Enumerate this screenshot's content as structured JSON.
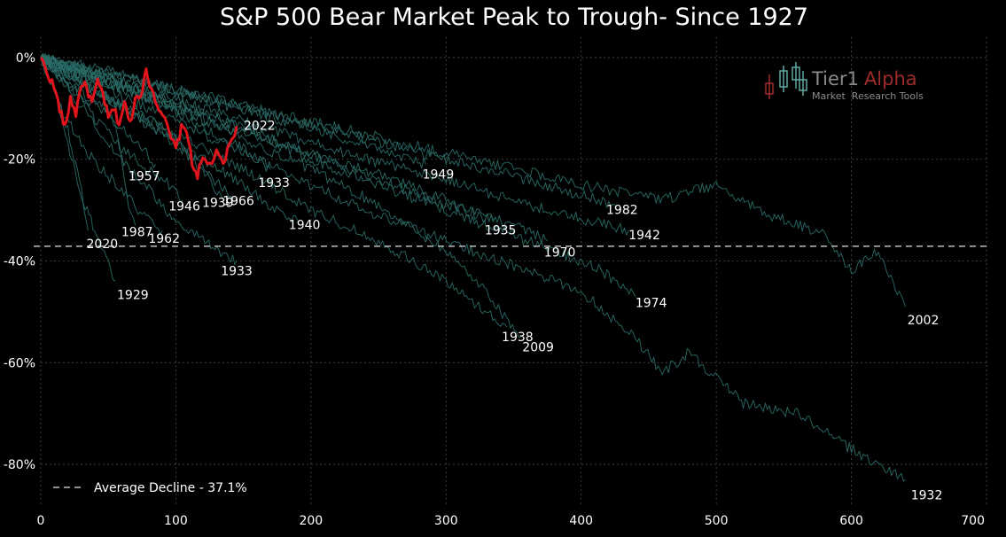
{
  "chart_data": {
    "type": "line",
    "title": "S&P 500 Bear Market Peak to Trough- Since 1927",
    "xlabel": "",
    "ylabel": "",
    "xlim": [
      0,
      700
    ],
    "ylim": [
      -88,
      4
    ],
    "x_ticks": [
      0,
      100,
      200,
      300,
      400,
      500,
      600,
      700
    ],
    "x_tick_labels": [
      "0",
      "100",
      "200",
      "300",
      "400",
      "500",
      "600",
      "700"
    ],
    "y_ticks": [
      0,
      -20,
      -40,
      -60,
      -80
    ],
    "y_tick_labels": [
      "0%",
      "-20%",
      "-40%",
      "-60%",
      "-80%"
    ],
    "grid": true,
    "legend": {
      "placement": "bottom-left",
      "entries": [
        {
          "label": "Average Decline - 37.1%",
          "style": "dashed",
          "color": "#bdbdbd"
        }
      ]
    },
    "average_decline": -37.1,
    "colors": {
      "background": "#000000",
      "history_line": "#2a6b67",
      "highlight_line": "#e0141c",
      "label": "#ffffff",
      "grid": "#4a4a4a"
    },
    "series": [
      {
        "name": "2022",
        "end_x": 145,
        "end_y": -13.5,
        "highlight": true,
        "points": [
          [
            0,
            0
          ],
          [
            5,
            -3
          ],
          [
            10,
            -6
          ],
          [
            14,
            -10
          ],
          [
            18,
            -14
          ],
          [
            22,
            -8
          ],
          [
            26,
            -11
          ],
          [
            30,
            -5
          ],
          [
            34,
            -6
          ],
          [
            38,
            -9
          ],
          [
            42,
            -5
          ],
          [
            46,
            -7
          ],
          [
            50,
            -12
          ],
          [
            54,
            -10
          ],
          [
            58,
            -13
          ],
          [
            62,
            -9
          ],
          [
            66,
            -13
          ],
          [
            70,
            -8
          ],
          [
            74,
            -7
          ],
          [
            78,
            -3
          ],
          [
            82,
            -6
          ],
          [
            86,
            -9
          ],
          [
            90,
            -11
          ],
          [
            95,
            -15
          ],
          [
            100,
            -18
          ],
          [
            104,
            -14
          ],
          [
            108,
            -14
          ],
          [
            112,
            -21
          ],
          [
            116,
            -23
          ],
          [
            120,
            -20
          ],
          [
            125,
            -21
          ],
          [
            130,
            -19
          ],
          [
            135,
            -21
          ],
          [
            140,
            -17
          ],
          [
            145,
            -13.5
          ]
        ]
      },
      {
        "name": "1957",
        "end_x": 85,
        "end_y": -21,
        "points": [
          [
            0,
            0
          ],
          [
            15,
            -4
          ],
          [
            30,
            -8
          ],
          [
            45,
            -10
          ],
          [
            60,
            -14
          ],
          [
            75,
            -18
          ],
          [
            85,
            -21
          ]
        ]
      },
      {
        "name": "1946",
        "end_x": 105,
        "end_y": -28,
        "points": [
          [
            0,
            0
          ],
          [
            20,
            -5
          ],
          [
            40,
            -12
          ],
          [
            60,
            -18
          ],
          [
            80,
            -22
          ],
          [
            95,
            -25
          ],
          [
            105,
            -28
          ]
        ]
      },
      {
        "name": "1939",
        "end_x": 135,
        "end_y": -28,
        "points": [
          [
            0,
            0
          ],
          [
            20,
            -3
          ],
          [
            40,
            -6
          ],
          [
            60,
            -10
          ],
          [
            80,
            -12
          ],
          [
            100,
            -16
          ],
          [
            120,
            -22
          ],
          [
            135,
            -28
          ]
        ]
      },
      {
        "name": "1933",
        "end_x": 90,
        "end_y": -34,
        "points": [
          [
            0,
            0
          ],
          [
            15,
            -10
          ],
          [
            30,
            -17
          ],
          [
            45,
            -22
          ],
          [
            60,
            -26
          ],
          [
            75,
            -31
          ],
          [
            90,
            -34
          ]
        ]
      },
      {
        "name": "1962",
        "end_x": 145,
        "end_y": -28,
        "points": [
          [
            0,
            0
          ],
          [
            25,
            -4
          ],
          [
            50,
            -8
          ],
          [
            75,
            -12
          ],
          [
            100,
            -17
          ],
          [
            120,
            -22
          ],
          [
            145,
            -28
          ]
        ]
      },
      {
        "name": "1966",
        "end_x": 170,
        "end_y": -22,
        "points": [
          [
            0,
            0
          ],
          [
            30,
            -3
          ],
          [
            60,
            -6
          ],
          [
            90,
            -9
          ],
          [
            120,
            -14
          ],
          [
            150,
            -18
          ],
          [
            170,
            -22
          ]
        ]
      },
      {
        "name": "2020",
        "end_x": 35,
        "end_y": -34,
        "points": [
          [
            0,
            0
          ],
          [
            10,
            -6
          ],
          [
            20,
            -14
          ],
          [
            30,
            -26
          ],
          [
            35,
            -34
          ]
        ]
      },
      {
        "name": "1987",
        "end_x": 70,
        "end_y": -33,
        "points": [
          [
            0,
            0
          ],
          [
            15,
            -4
          ],
          [
            30,
            -7
          ],
          [
            45,
            -9
          ],
          [
            55,
            -12
          ],
          [
            60,
            -20
          ],
          [
            65,
            -30
          ],
          [
            70,
            -33
          ]
        ]
      },
      {
        "name": "1929",
        "end_x": 55,
        "end_y": -44,
        "points": [
          [
            0,
            0
          ],
          [
            10,
            -6
          ],
          [
            20,
            -17
          ],
          [
            30,
            -27
          ],
          [
            40,
            -34
          ],
          [
            50,
            -40
          ],
          [
            55,
            -44
          ]
        ]
      },
      {
        "name": "1933",
        "end_x": 145,
        "end_y": -40,
        "points": [
          [
            0,
            0
          ],
          [
            20,
            -6
          ],
          [
            40,
            -13
          ],
          [
            60,
            -20
          ],
          [
            80,
            -26
          ],
          [
            100,
            -32
          ],
          [
            120,
            -36
          ],
          [
            145,
            -40
          ]
        ]
      },
      {
        "name": "1940",
        "end_x": 190,
        "end_y": -32,
        "points": [
          [
            0,
            0
          ],
          [
            30,
            -5
          ],
          [
            60,
            -10
          ],
          [
            90,
            -15
          ],
          [
            120,
            -20
          ],
          [
            150,
            -25
          ],
          [
            170,
            -29
          ],
          [
            190,
            -32
          ]
        ]
      },
      {
        "name": "1949",
        "end_x": 285,
        "end_y": -21,
        "points": [
          [
            0,
            0
          ],
          [
            40,
            -2
          ],
          [
            80,
            -5
          ],
          [
            120,
            -8
          ],
          [
            160,
            -11
          ],
          [
            200,
            -14
          ],
          [
            240,
            -17
          ],
          [
            285,
            -21
          ]
        ]
      },
      {
        "name": "1935",
        "end_x": 335,
        "end_y": -32,
        "points": [
          [
            0,
            0
          ],
          [
            50,
            -4
          ],
          [
            100,
            -9
          ],
          [
            150,
            -14
          ],
          [
            200,
            -19
          ],
          [
            250,
            -23
          ],
          [
            300,
            -28
          ],
          [
            335,
            -32
          ]
        ]
      },
      {
        "name": "1970",
        "end_x": 375,
        "end_y": -36,
        "points": [
          [
            0,
            0
          ],
          [
            50,
            -4
          ],
          [
            100,
            -9
          ],
          [
            150,
            -14
          ],
          [
            200,
            -19
          ],
          [
            250,
            -24
          ],
          [
            300,
            -29
          ],
          [
            350,
            -33
          ],
          [
            375,
            -36
          ]
        ]
      },
      {
        "name": "1982",
        "end_x": 425,
        "end_y": -29,
        "points": [
          [
            0,
            0
          ],
          [
            60,
            -4
          ],
          [
            120,
            -8
          ],
          [
            180,
            -12
          ],
          [
            240,
            -16
          ],
          [
            300,
            -20
          ],
          [
            360,
            -24
          ],
          [
            425,
            -29
          ]
        ]
      },
      {
        "name": "1942",
        "end_x": 435,
        "end_y": -34,
        "points": [
          [
            0,
            0
          ],
          [
            60,
            -5
          ],
          [
            120,
            -10
          ],
          [
            180,
            -15
          ],
          [
            240,
            -20
          ],
          [
            300,
            -24
          ],
          [
            360,
            -29
          ],
          [
            435,
            -34
          ]
        ]
      },
      {
        "name": "1938",
        "end_x": 345,
        "end_y": -53,
        "points": [
          [
            0,
            0
          ],
          [
            50,
            -8
          ],
          [
            100,
            -15
          ],
          [
            150,
            -22
          ],
          [
            200,
            -30
          ],
          [
            250,
            -36
          ],
          [
            300,
            -44
          ],
          [
            345,
            -53
          ]
        ]
      },
      {
        "name": "2009",
        "end_x": 355,
        "end_y": -55,
        "points": [
          [
            0,
            0
          ],
          [
            50,
            -5
          ],
          [
            100,
            -10
          ],
          [
            150,
            -16
          ],
          [
            200,
            -22
          ],
          [
            250,
            -29
          ],
          [
            300,
            -38
          ],
          [
            330,
            -46
          ],
          [
            355,
            -55
          ]
        ]
      },
      {
        "name": "1974",
        "end_x": 440,
        "end_y": -47,
        "points": [
          [
            0,
            0
          ],
          [
            60,
            -6
          ],
          [
            120,
            -12
          ],
          [
            180,
            -18
          ],
          [
            240,
            -24
          ],
          [
            300,
            -30
          ],
          [
            360,
            -36
          ],
          [
            410,
            -41
          ],
          [
            440,
            -47
          ]
        ]
      },
      {
        "name": "2002",
        "end_x": 640,
        "end_y": -49,
        "points": [
          [
            0,
            0
          ],
          [
            80,
            -5
          ],
          [
            160,
            -10
          ],
          [
            240,
            -15
          ],
          [
            320,
            -20
          ],
          [
            400,
            -25
          ],
          [
            460,
            -28
          ],
          [
            500,
            -25
          ],
          [
            540,
            -31
          ],
          [
            580,
            -35
          ],
          [
            600,
            -42
          ],
          [
            620,
            -38
          ],
          [
            640,
            -49
          ]
        ]
      },
      {
        "name": "1932",
        "end_x": 640,
        "end_y": -83,
        "points": [
          [
            0,
            0
          ],
          [
            80,
            -10
          ],
          [
            160,
            -20
          ],
          [
            240,
            -30
          ],
          [
            320,
            -38
          ],
          [
            400,
            -46
          ],
          [
            440,
            -55
          ],
          [
            460,
            -62
          ],
          [
            480,
            -58
          ],
          [
            520,
            -68
          ],
          [
            560,
            -70
          ],
          [
            600,
            -77
          ],
          [
            640,
            -83
          ]
        ]
      }
    ]
  },
  "labels": [
    {
      "text": "2022"
    },
    {
      "text": "1957"
    },
    {
      "text": "1946"
    },
    {
      "text": "1939"
    },
    {
      "text": "1962"
    },
    {
      "text": "1966"
    },
    {
      "text": "1933"
    },
    {
      "text": "2020"
    },
    {
      "text": "1987"
    },
    {
      "text": "1929"
    },
    {
      "text": "1933"
    },
    {
      "text": "1940"
    },
    {
      "text": "1949"
    },
    {
      "text": "1935"
    },
    {
      "text": "1970"
    },
    {
      "text": "1982"
    },
    {
      "text": "1942"
    },
    {
      "text": "1938"
    },
    {
      "text": "2009"
    },
    {
      "text": "1974"
    },
    {
      "text": "2002"
    },
    {
      "text": "1932"
    }
  ],
  "logo": {
    "brand_primary": "Tier1",
    "brand_secondary": "Alpha",
    "tagline": "Market  Research Tools",
    "colors": {
      "primary": "#8a8a8a",
      "secondary": "#9e2a2a",
      "tagline": "#8a8a8a"
    }
  }
}
